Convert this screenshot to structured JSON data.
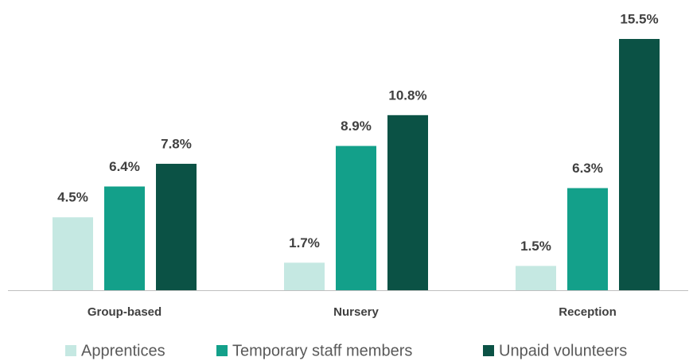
{
  "chart_data": {
    "type": "bar",
    "categories": [
      "Group-based",
      "Nursery",
      "Reception"
    ],
    "series": [
      {
        "name": "Apprentices",
        "color": "#c5e8e2",
        "values": [
          4.5,
          1.7,
          1.5
        ],
        "value_labels": [
          "4.5%",
          "1.7%",
          "1.5%"
        ]
      },
      {
        "name": "Temporary staff members",
        "color": "#13a08a",
        "values": [
          6.4,
          8.9,
          6.3
        ],
        "value_labels": [
          "6.4%",
          "8.9%",
          "6.3%"
        ]
      },
      {
        "name": "Unpaid volunteers",
        "color": "#0b5245",
        "values": [
          7.8,
          10.8,
          15.5
        ],
        "value_labels": [
          "7.8%",
          "10.8%",
          "15.5%"
        ]
      }
    ],
    "legend": "bottom"
  }
}
